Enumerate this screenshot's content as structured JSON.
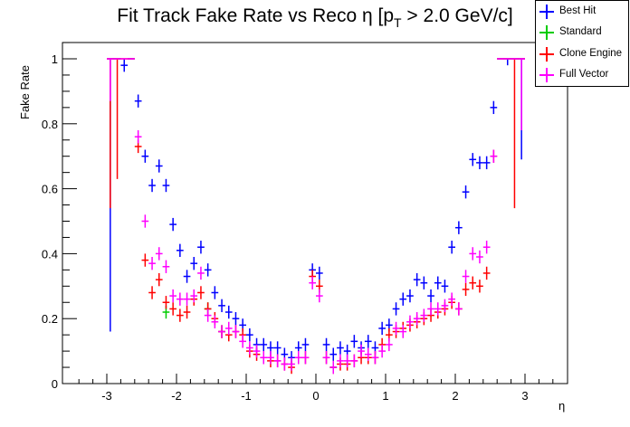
{
  "chart_data": {
    "type": "scatter",
    "title": "Fit Track Fake Rate vs Reco η [p_T > 2.0 GeV/c]",
    "title_parts": {
      "main": "Fit Track Fake Rate vs Reco η [p",
      "subscript": "T",
      "tail": " > 2.0 GeV/c]"
    },
    "xlabel": "η",
    "ylabel": "Fake Rate",
    "xlim": [
      -3.6,
      3.6
    ],
    "ylim": [
      0,
      1.05
    ],
    "xticks": [
      -3,
      -2,
      -1,
      0,
      1,
      2,
      3
    ],
    "xtick_labels": [
      "-3",
      "-2",
      "-1",
      "0",
      "1",
      "2",
      "3"
    ],
    "yticks": [
      0,
      0.2,
      0.4,
      0.6,
      0.8,
      1
    ],
    "ytick_labels": [
      "0",
      "0.2",
      "0.4",
      "0.6",
      "0.8",
      "1"
    ],
    "grid": false,
    "legend_position": "top-right",
    "bin_width": 0.1,
    "series": [
      {
        "name": "Best Hit",
        "color": "#0000ff",
        "x": [
          -2.95,
          -2.85,
          -2.75,
          -2.65,
          -2.55,
          -2.45,
          -2.35,
          -2.25,
          -2.15,
          -2.05,
          -1.95,
          -1.85,
          -1.75,
          -1.65,
          -1.55,
          -1.45,
          -1.35,
          -1.25,
          -1.15,
          -1.05,
          -0.95,
          -0.85,
          -0.75,
          -0.65,
          -0.55,
          -0.45,
          -0.35,
          -0.25,
          -0.15,
          -0.05,
          0.05,
          0.15,
          0.25,
          0.35,
          0.45,
          0.55,
          0.65,
          0.75,
          0.85,
          0.95,
          1.05,
          1.15,
          1.25,
          1.35,
          1.45,
          1.55,
          1.65,
          1.75,
          1.85,
          1.95,
          2.05,
          2.15,
          2.25,
          2.35,
          2.45,
          2.55,
          2.65,
          2.75,
          2.85,
          2.95
        ],
        "y": [
          1.0,
          1.0,
          0.98,
          1.0,
          0.87,
          0.7,
          0.61,
          0.67,
          0.61,
          0.49,
          0.41,
          0.33,
          0.37,
          0.42,
          0.35,
          0.28,
          0.24,
          0.22,
          0.2,
          0.18,
          0.15,
          0.12,
          0.12,
          0.11,
          0.11,
          0.09,
          0.08,
          0.11,
          0.12,
          0.35,
          0.34,
          0.12,
          0.09,
          0.11,
          0.1,
          0.13,
          0.11,
          0.13,
          0.11,
          0.17,
          0.18,
          0.23,
          0.26,
          0.27,
          0.32,
          0.31,
          0.27,
          0.31,
          0.3,
          0.42,
          0.48,
          0.59,
          0.69,
          0.68,
          0.68,
          0.85,
          1.0,
          1.0,
          1.0,
          1.0
        ],
        "err_low": [
          0.84,
          0.0,
          0.02,
          0.0,
          0.02,
          0.02,
          0.02,
          0.02,
          0.02,
          0.02,
          0.02,
          0.02,
          0.02,
          0.02,
          0.02,
          0.02,
          0.02,
          0.02,
          0.02,
          0.02,
          0.02,
          0.02,
          0.02,
          0.02,
          0.02,
          0.02,
          0.02,
          0.02,
          0.02,
          0.02,
          0.02,
          0.02,
          0.02,
          0.02,
          0.02,
          0.02,
          0.02,
          0.02,
          0.02,
          0.02,
          0.02,
          0.02,
          0.02,
          0.02,
          0.02,
          0.02,
          0.02,
          0.02,
          0.02,
          0.02,
          0.02,
          0.02,
          0.02,
          0.02,
          0.02,
          0.02,
          0.0,
          0.02,
          0.0,
          0.31
        ]
      },
      {
        "name": "Standard",
        "color": "#00cc00",
        "x": [
          -2.15,
          -1.55,
          -1.35,
          0.25
        ],
        "y": [
          0.22,
          0.23,
          0.16,
          0.05
        ],
        "err_low": [
          0.02,
          0.02,
          0.02,
          0.01
        ]
      },
      {
        "name": "Clone Engine",
        "color": "#ff0000",
        "x": [
          -2.95,
          -2.85,
          -2.75,
          -2.65,
          -2.55,
          -2.45,
          -2.35,
          -2.25,
          -2.15,
          -2.05,
          -1.95,
          -1.85,
          -1.75,
          -1.65,
          -1.55,
          -1.45,
          -1.35,
          -1.25,
          -1.15,
          -1.05,
          -0.95,
          -0.85,
          -0.75,
          -0.65,
          -0.55,
          -0.45,
          -0.35,
          -0.25,
          -0.15,
          -0.05,
          0.05,
          0.15,
          0.25,
          0.35,
          0.45,
          0.55,
          0.65,
          0.75,
          0.85,
          0.95,
          1.05,
          1.15,
          1.25,
          1.35,
          1.45,
          1.55,
          1.65,
          1.75,
          1.85,
          1.95,
          2.05,
          2.15,
          2.25,
          2.35,
          2.45,
          2.55,
          2.65,
          2.75,
          2.85,
          2.95
        ],
        "y": [
          1.0,
          1.0,
          1.0,
          1.0,
          0.73,
          0.38,
          0.28,
          0.32,
          0.25,
          0.23,
          0.21,
          0.22,
          0.26,
          0.28,
          0.23,
          0.2,
          0.16,
          0.15,
          0.16,
          0.15,
          0.1,
          0.09,
          0.08,
          0.07,
          0.07,
          0.06,
          0.05,
          0.08,
          0.08,
          0.33,
          0.3,
          0.08,
          0.05,
          0.06,
          0.06,
          0.07,
          0.08,
          0.08,
          0.08,
          0.12,
          0.15,
          0.16,
          0.17,
          0.18,
          0.19,
          0.2,
          0.21,
          0.22,
          0.23,
          0.25,
          0.23,
          0.29,
          0.31,
          0.3,
          0.34,
          0.7,
          1.0,
          1.0,
          1.0,
          1.0
        ],
        "err_low": [
          0.46,
          0.37,
          0.0,
          0.0,
          0.02,
          0.02,
          0.02,
          0.02,
          0.02,
          0.02,
          0.02,
          0.02,
          0.02,
          0.02,
          0.02,
          0.02,
          0.02,
          0.02,
          0.02,
          0.02,
          0.02,
          0.02,
          0.02,
          0.02,
          0.02,
          0.02,
          0.02,
          0.02,
          0.02,
          0.02,
          0.02,
          0.02,
          0.02,
          0.02,
          0.02,
          0.02,
          0.02,
          0.02,
          0.02,
          0.02,
          0.02,
          0.02,
          0.02,
          0.02,
          0.02,
          0.02,
          0.02,
          0.02,
          0.02,
          0.02,
          0.02,
          0.02,
          0.02,
          0.02,
          0.02,
          0.02,
          0.0,
          0.0,
          0.46,
          0.0
        ]
      },
      {
        "name": "Full Vector",
        "color": "#ff00ff",
        "x": [
          -2.95,
          -2.85,
          -2.75,
          -2.65,
          -2.55,
          -2.45,
          -2.35,
          -2.25,
          -2.15,
          -2.05,
          -1.95,
          -1.85,
          -1.75,
          -1.65,
          -1.55,
          -1.45,
          -1.35,
          -1.25,
          -1.15,
          -1.05,
          -0.95,
          -0.85,
          -0.75,
          -0.65,
          -0.55,
          -0.45,
          -0.35,
          -0.25,
          -0.15,
          -0.05,
          0.05,
          0.15,
          0.25,
          0.35,
          0.45,
          0.55,
          0.65,
          0.75,
          0.85,
          0.95,
          1.05,
          1.15,
          1.25,
          1.35,
          1.45,
          1.55,
          1.65,
          1.75,
          1.85,
          1.95,
          2.05,
          2.15,
          2.25,
          2.35,
          2.45,
          2.55,
          2.65,
          2.75,
          2.85,
          2.95
        ],
        "y": [
          1.0,
          1.0,
          1.0,
          1.0,
          0.76,
          0.5,
          0.37,
          0.4,
          0.36,
          0.27,
          0.26,
          0.26,
          0.27,
          0.34,
          0.21,
          0.19,
          0.16,
          0.17,
          0.16,
          0.13,
          0.11,
          0.1,
          0.08,
          0.08,
          0.07,
          0.06,
          0.06,
          0.08,
          0.08,
          0.31,
          0.27,
          0.08,
          0.05,
          0.07,
          0.07,
          0.07,
          0.1,
          0.09,
          0.08,
          0.1,
          0.12,
          0.17,
          0.16,
          0.19,
          0.2,
          0.21,
          0.23,
          0.23,
          0.24,
          0.26,
          0.23,
          0.33,
          0.4,
          0.39,
          0.42,
          0.7,
          1.0,
          1.0,
          1.0,
          1.0
        ],
        "err_low": [
          0.13,
          0.0,
          0.0,
          0.0,
          0.02,
          0.02,
          0.02,
          0.02,
          0.02,
          0.02,
          0.02,
          0.02,
          0.02,
          0.02,
          0.02,
          0.02,
          0.02,
          0.02,
          0.02,
          0.02,
          0.02,
          0.02,
          0.02,
          0.02,
          0.02,
          0.02,
          0.02,
          0.02,
          0.02,
          0.02,
          0.02,
          0.02,
          0.02,
          0.02,
          0.02,
          0.02,
          0.02,
          0.02,
          0.02,
          0.02,
          0.02,
          0.02,
          0.02,
          0.02,
          0.02,
          0.02,
          0.02,
          0.02,
          0.02,
          0.02,
          0.02,
          0.02,
          0.02,
          0.02,
          0.02,
          0.02,
          0.0,
          0.0,
          0.0,
          0.22
        ]
      }
    ]
  },
  "legend": [
    {
      "label": "Best Hit",
      "color": "#0000ff"
    },
    {
      "label": "Standard",
      "color": "#00cc00"
    },
    {
      "label": "Clone Engine",
      "color": "#ff0000"
    },
    {
      "label": "Full Vector",
      "color": "#ff00ff"
    }
  ]
}
